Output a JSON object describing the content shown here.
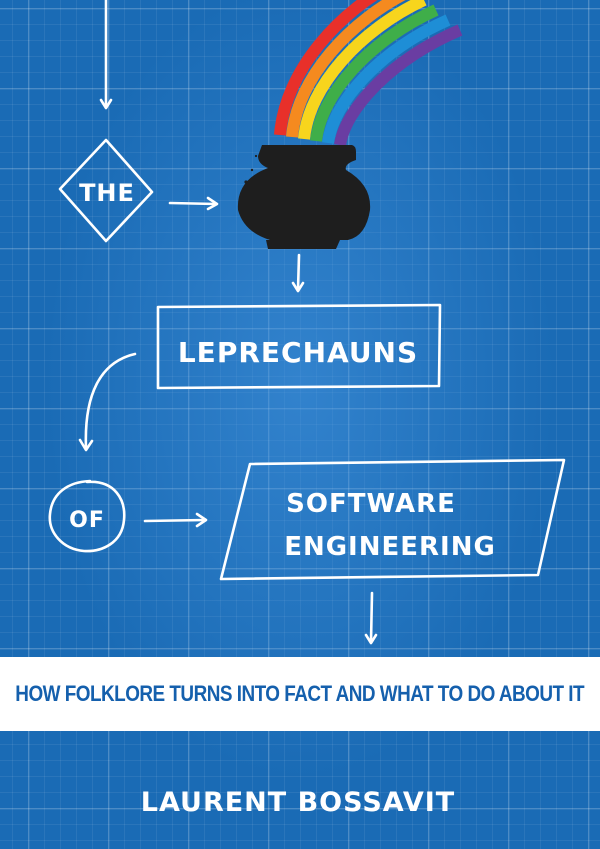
{
  "cover": {
    "title_word_1": "THE",
    "title_word_2": "LEPRECHAUNS",
    "title_word_3": "OF",
    "title_line_4a": "SOFTWARE",
    "title_line_4b": "ENGINEERING",
    "subtitle": "HOW FOLKLORE TURNS INTO FACT AND WHAT TO DO ABOUT IT",
    "author": "LAURENT BOSSAVIT"
  },
  "colors": {
    "background": "#1a6bb5",
    "ink": "#ffffff",
    "subtitle_text": "#1560ad",
    "pot": "#1e1e1e",
    "rainbow": [
      "#e8302a",
      "#f58a1f",
      "#f7d51d",
      "#3fae49",
      "#1e8ed6",
      "#6a3da2"
    ]
  },
  "icons": {
    "pot": "pot-of-gold-icon",
    "rainbow": "rainbow-icon"
  }
}
